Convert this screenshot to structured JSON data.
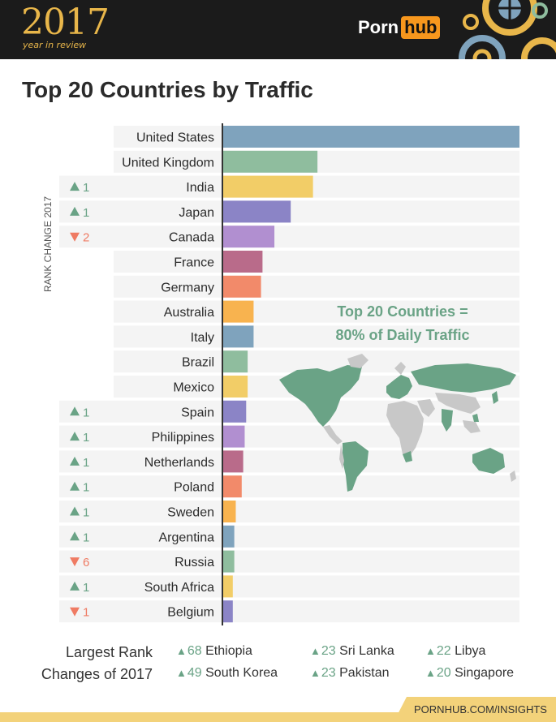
{
  "header": {
    "year": "2017",
    "subtitle": "year in review",
    "brand_part1": "Porn",
    "brand_part2": "hub"
  },
  "title": "Top 20 Countries by Traffic",
  "rank_change_label": "RANK CHANGE 2017",
  "overlay": {
    "line1": "Top 20 Countries =",
    "line2": "80% of Daily Traffic"
  },
  "colors": {
    "up": "#6aa386",
    "down": "#ef7b63",
    "palette": [
      "#7fa3bd",
      "#8fbd9e",
      "#f2cd67",
      "#8b84c6",
      "#b18fd0",
      "#b96b8a",
      "#f28a6a",
      "#f8b34f"
    ]
  },
  "chart_data": {
    "type": "bar",
    "orientation": "horizontal",
    "categories": [
      "United States",
      "United Kingdom",
      "India",
      "Japan",
      "Canada",
      "France",
      "Germany",
      "Australia",
      "Italy",
      "Brazil",
      "Mexico",
      "Spain",
      "Philippines",
      "Netherlands",
      "Poland",
      "Sweden",
      "Argentina",
      "Russia",
      "South Africa",
      "Belgium"
    ],
    "values": [
      100,
      32,
      30.5,
      23,
      17.5,
      13.5,
      13,
      10.5,
      10.5,
      8.5,
      8.5,
      8,
      7.5,
      7,
      6.5,
      4.5,
      4,
      4,
      3.5,
      3.5
    ],
    "rank_changes": [
      {
        "dir": "",
        "value": ""
      },
      {
        "dir": "",
        "value": ""
      },
      {
        "dir": "up",
        "value": "1"
      },
      {
        "dir": "up",
        "value": "1"
      },
      {
        "dir": "down",
        "value": "2"
      },
      {
        "dir": "",
        "value": ""
      },
      {
        "dir": "",
        "value": ""
      },
      {
        "dir": "",
        "value": ""
      },
      {
        "dir": "",
        "value": ""
      },
      {
        "dir": "",
        "value": ""
      },
      {
        "dir": "",
        "value": ""
      },
      {
        "dir": "up",
        "value": "1"
      },
      {
        "dir": "up",
        "value": "1"
      },
      {
        "dir": "up",
        "value": "1"
      },
      {
        "dir": "up",
        "value": "1"
      },
      {
        "dir": "up",
        "value": "1"
      },
      {
        "dir": "up",
        "value": "1"
      },
      {
        "dir": "down",
        "value": "6"
      },
      {
        "dir": "up",
        "value": "1"
      },
      {
        "dir": "down",
        "value": "1"
      }
    ],
    "xlim": [
      0,
      100
    ],
    "grid": false,
    "axis_labels_shown": false
  },
  "footer": {
    "label_line1": "Largest Rank",
    "label_line2": "Changes of 2017",
    "changes": [
      {
        "value": "68",
        "country": "Ethiopia"
      },
      {
        "value": "49",
        "country": "South Korea"
      },
      {
        "value": "23",
        "country": "Sri Lanka"
      },
      {
        "value": "23",
        "country": "Pakistan"
      },
      {
        "value": "22",
        "country": "Libya"
      },
      {
        "value": "20",
        "country": "Singapore"
      }
    ],
    "url": "PORNHUB.COM/INSIGHTS"
  }
}
